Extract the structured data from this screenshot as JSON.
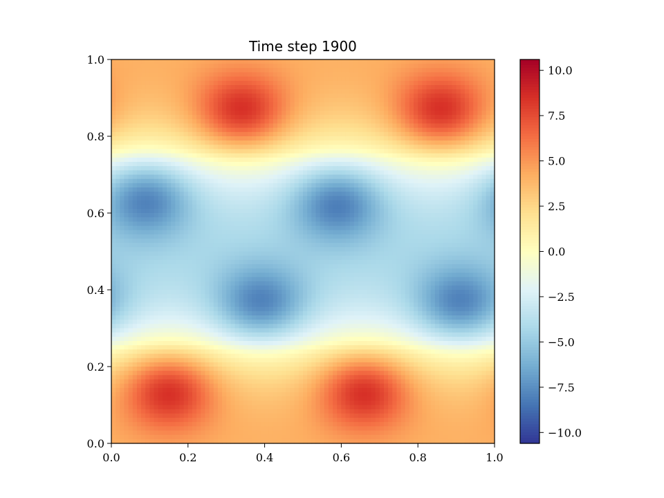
{
  "chart_data": {
    "type": "heatmap",
    "title": "Time step 1900",
    "xlabel": "",
    "ylabel": "",
    "xlim": [
      0.0,
      1.0
    ],
    "ylim": [
      0.0,
      1.0
    ],
    "x_ticks": [
      0.0,
      0.2,
      0.4,
      0.6,
      0.8,
      1.0
    ],
    "x_tick_labels": [
      "0.0",
      "0.2",
      "0.4",
      "0.6",
      "0.8",
      "1.0"
    ],
    "y_ticks": [
      0.0,
      0.2,
      0.4,
      0.6,
      0.8,
      1.0
    ],
    "y_tick_labels": [
      "0.0",
      "0.2",
      "0.4",
      "0.6",
      "0.8",
      "1.0"
    ],
    "colormap": "RdYlBu_r",
    "colorbar": {
      "range": [
        -10.6,
        10.6
      ],
      "ticks": [
        -10.0,
        -7.5,
        -5.0,
        -2.5,
        0.0,
        2.5,
        5.0,
        7.5,
        10.0
      ],
      "tick_labels": [
        "−10.0",
        "−7.5",
        "−5.0",
        "−2.5",
        "0.0",
        "2.5",
        "5.0",
        "7.5",
        "10.0"
      ]
    },
    "grid": false,
    "features": [
      {
        "kind": "max",
        "x": 0.15,
        "y": 0.14,
        "value": 10.5
      },
      {
        "kind": "max",
        "x": 0.66,
        "y": 0.14,
        "value": 10.5
      },
      {
        "kind": "max",
        "x": 0.34,
        "y": 0.86,
        "value": 10.5
      },
      {
        "kind": "max",
        "x": 0.86,
        "y": 0.86,
        "value": 10.5
      },
      {
        "kind": "min",
        "x": 0.09,
        "y": 0.64,
        "value": -10.0
      },
      {
        "kind": "min",
        "x": 0.59,
        "y": 0.63,
        "value": -10.0
      },
      {
        "kind": "min",
        "x": 0.39,
        "y": 0.36,
        "value": -10.0
      },
      {
        "kind": "min",
        "x": 0.91,
        "y": 0.36,
        "value": -10.0
      }
    ]
  }
}
